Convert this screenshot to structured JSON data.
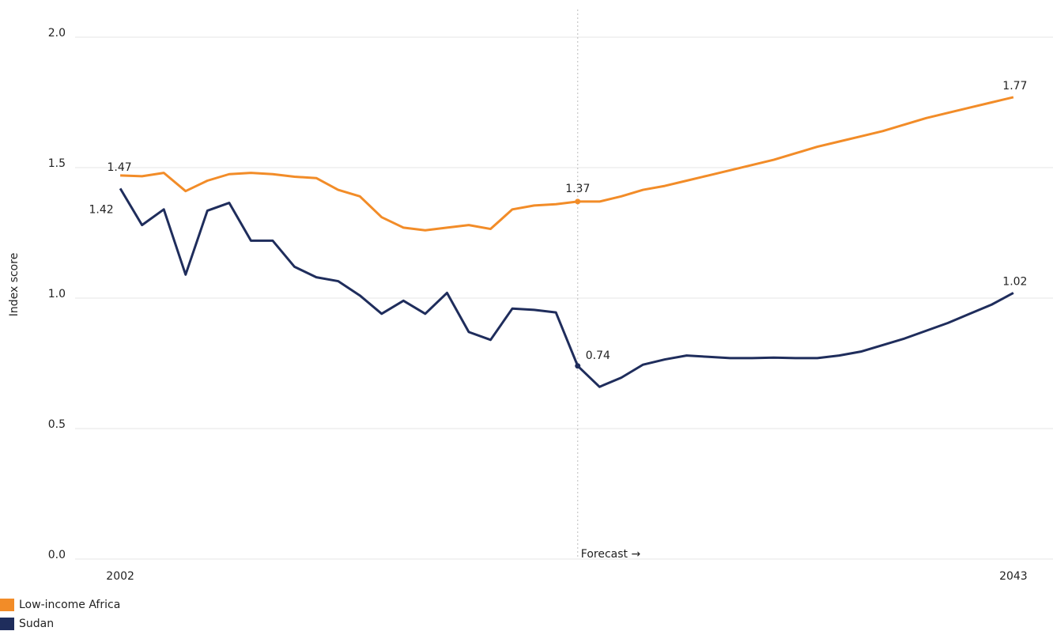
{
  "chart_data": {
    "type": "line",
    "x": [
      2002,
      2003,
      2004,
      2005,
      2006,
      2007,
      2008,
      2009,
      2010,
      2011,
      2012,
      2013,
      2014,
      2015,
      2016,
      2017,
      2018,
      2019,
      2020,
      2021,
      2022,
      2023,
      2024,
      2025,
      2026,
      2027,
      2028,
      2029,
      2030,
      2031,
      2032,
      2033,
      2034,
      2035,
      2036,
      2037,
      2038,
      2039,
      2040,
      2041,
      2042,
      2043
    ],
    "series": [
      {
        "name": "Low-income Africa",
        "color": "#f28c28",
        "values": [
          1.47,
          1.467,
          1.48,
          1.41,
          1.45,
          1.475,
          1.48,
          1.475,
          1.465,
          1.46,
          1.415,
          1.39,
          1.31,
          1.27,
          1.26,
          1.27,
          1.28,
          1.265,
          1.34,
          1.355,
          1.36,
          1.37,
          1.37,
          1.39,
          1.415,
          1.43,
          1.45,
          1.47,
          1.49,
          1.51,
          1.53,
          1.555,
          1.58,
          1.6,
          1.62,
          1.64,
          1.665,
          1.69,
          1.71,
          1.73,
          1.75,
          1.77
        ]
      },
      {
        "name": "Sudan",
        "color": "#1f2d5c",
        "values": [
          1.42,
          1.28,
          1.34,
          1.09,
          1.335,
          1.365,
          1.22,
          1.22,
          1.12,
          1.08,
          1.065,
          1.01,
          0.94,
          0.99,
          0.94,
          1.02,
          0.87,
          0.84,
          0.96,
          0.955,
          0.945,
          0.74,
          0.66,
          0.695,
          0.745,
          0.765,
          0.78,
          0.775,
          0.77,
          0.77,
          0.772,
          0.77,
          0.77,
          0.78,
          0.795,
          0.82,
          0.845,
          0.875,
          0.905,
          0.94,
          0.975,
          1.02
        ]
      }
    ],
    "y_label": "Index score",
    "xlim": [
      2000,
      2045
    ],
    "xticks": [
      2002,
      2043
    ],
    "ylim": [
      0,
      2.1
    ],
    "yticks": [
      {
        "value": 0,
        "label": "0.0"
      },
      0.5,
      {
        "value": 1,
        "label": "1.0"
      },
      1.5,
      {
        "value": 2,
        "label": "2.0"
      }
    ],
    "grid": true,
    "annotations": [
      {
        "text": "Forecast →",
        "x": 2023
      }
    ],
    "legend": "bottom-left"
  }
}
